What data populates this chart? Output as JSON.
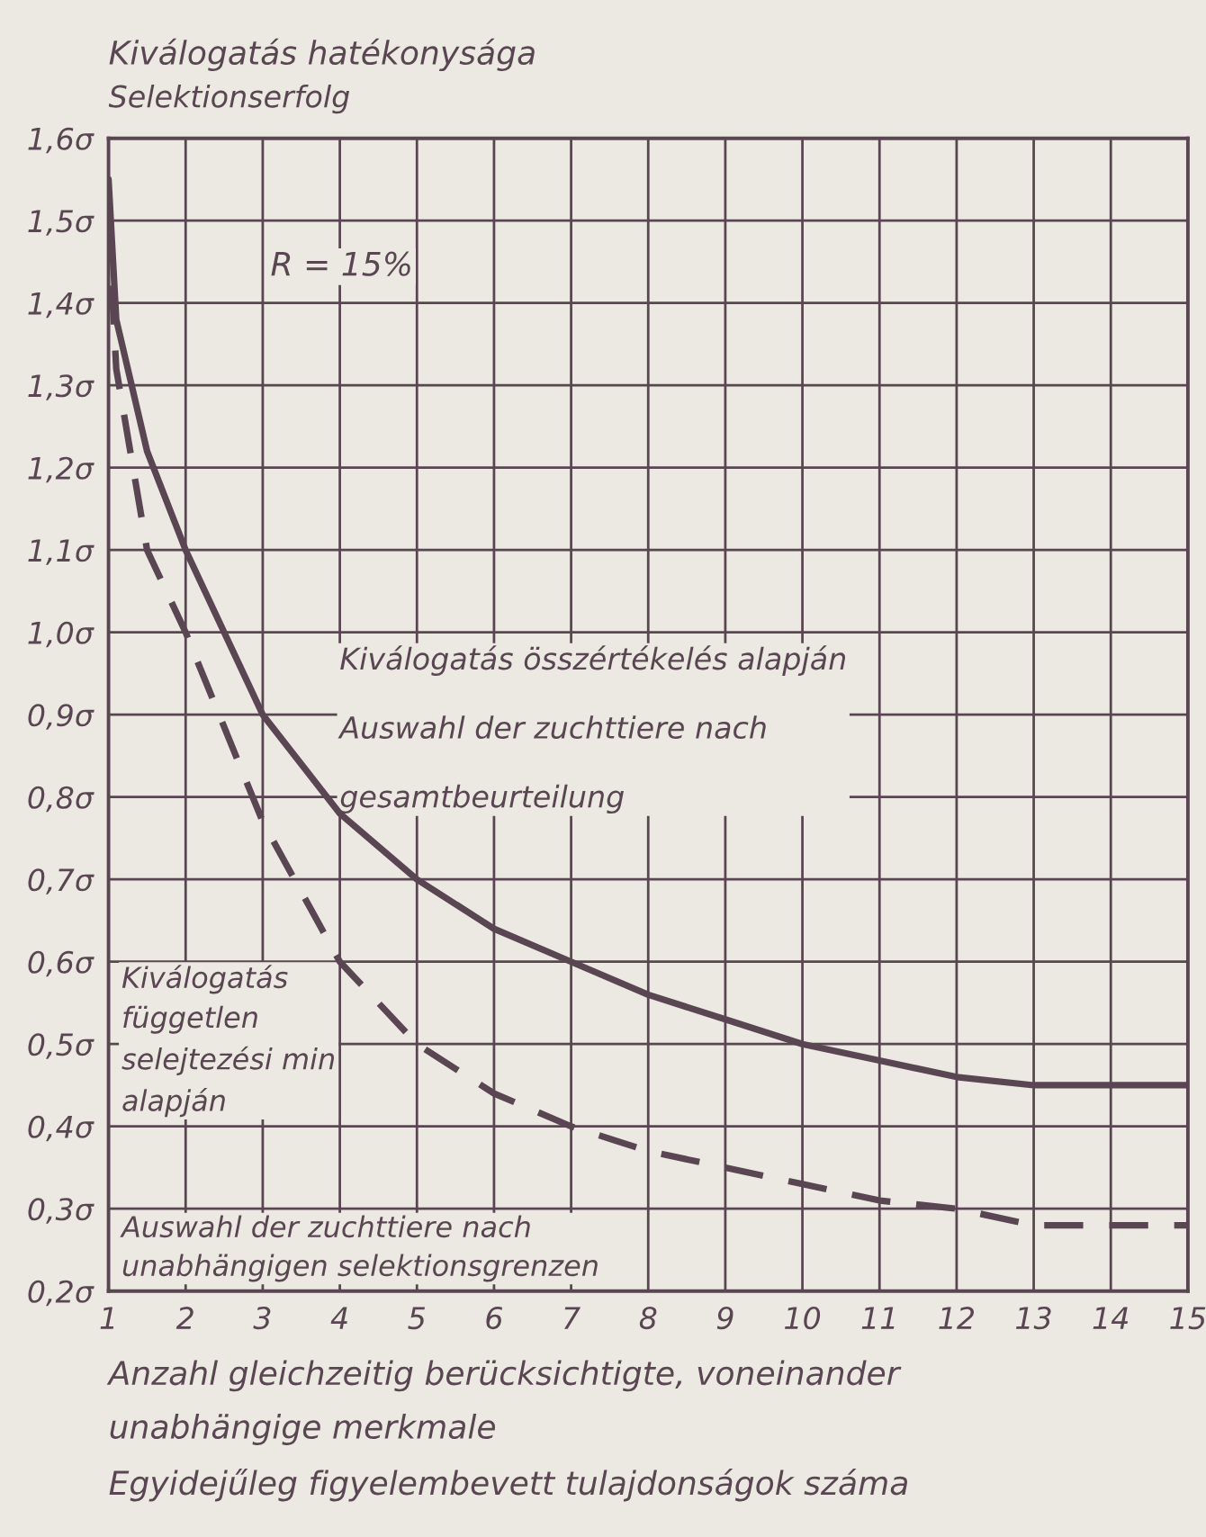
{
  "chart_data": {
    "type": "line",
    "title": "Kiválogatás hatékonysága",
    "subtitle": "Selektionserfolg",
    "xlabel": "Anzahl gleichzeitig berücksichtigte, voneinander\nunabhängige merkmale\nEgyidejűleg figyelembevett tulajdonságok száma",
    "xlim": [
      1,
      15
    ],
    "xticks": [
      1,
      2,
      3,
      4,
      5,
      6,
      7,
      8,
      9,
      10,
      11,
      12,
      13,
      14,
      15
    ],
    "ylim": [
      0.2,
      1.6
    ],
    "yticks": [
      {
        "value": 0.2,
        "label": "0,2σ"
      },
      {
        "value": 0.3,
        "label": "0,3σ"
      },
      {
        "value": 0.4,
        "label": "0,4σ"
      },
      {
        "value": 0.5,
        "label": "0,5σ"
      },
      {
        "value": 0.6,
        "label": "0,6σ"
      },
      {
        "value": 0.7,
        "label": "0,7σ"
      },
      {
        "value": 0.8,
        "label": "0,8σ"
      },
      {
        "value": 0.9,
        "label": "0,9σ"
      },
      {
        "value": 1.0,
        "label": "1,0σ"
      },
      {
        "value": 1.1,
        "label": "1,1σ"
      },
      {
        "value": 1.2,
        "label": "1,2σ"
      },
      {
        "value": 1.3,
        "label": "1,3σ"
      },
      {
        "value": 1.4,
        "label": "1,4σ"
      },
      {
        "value": 1.5,
        "label": "1,5σ"
      },
      {
        "value": 1.6,
        "label": "1,6σ"
      }
    ],
    "grid": true,
    "series": [
      {
        "color": "#5a4652",
        "line_style": "solid",
        "x": [
          1,
          1.1,
          1.5,
          2,
          3,
          4,
          5,
          6,
          7,
          8,
          9,
          10,
          11,
          12,
          13,
          14,
          15
        ],
        "values": [
          1.55,
          1.38,
          1.22,
          1.1,
          0.9,
          0.78,
          0.7,
          0.64,
          0.6,
          0.56,
          0.53,
          0.5,
          0.48,
          0.46,
          0.45,
          0.45,
          0.45
        ]
      },
      {
        "color": "#5a4652",
        "line_style": "dashed",
        "x": [
          1,
          1.1,
          1.5,
          2,
          3,
          4,
          5,
          6,
          7,
          8,
          9,
          10,
          11,
          12,
          13,
          14,
          15
        ],
        "values": [
          1.5,
          1.32,
          1.1,
          1.0,
          0.77,
          0.6,
          0.5,
          0.44,
          0.4,
          0.37,
          0.35,
          0.33,
          0.31,
          0.3,
          0.28,
          0.28,
          0.28
        ]
      }
    ],
    "annotations": [
      "R = 15%",
      "Kiválogatás összértékelés alapján\nAuswahl der zuchttiere nach\ngesamtbeurteilung",
      "Kiválogatás\nfüggetlen\nselejtezési min\nalapján",
      "Auswahl der zuchttiere nach\nunabhängigen selektionsgrenzen"
    ]
  }
}
